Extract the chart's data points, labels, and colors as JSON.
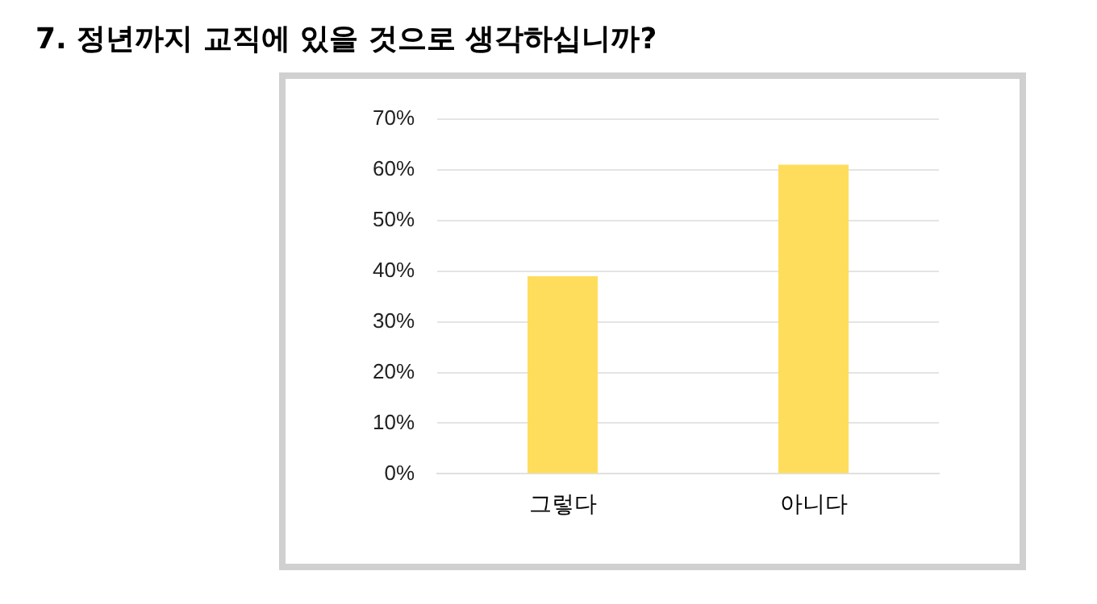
{
  "chart_data": {
    "type": "bar",
    "title": "7. 정년까지 교직에 있을 것으로 생각하십니까?",
    "categories": [
      "그렇다",
      "아니다"
    ],
    "values": [
      39,
      61
    ],
    "color": "#ffdd5c",
    "ylim": [
      0,
      70
    ],
    "yticks": [
      {
        "value": 0,
        "label": "0%"
      },
      {
        "value": 10,
        "label": "10%"
      },
      {
        "value": 20,
        "label": "20%"
      },
      {
        "value": 30,
        "label": "30%"
      },
      {
        "value": 40,
        "label": "40%"
      },
      {
        "value": 50,
        "label": "50%"
      },
      {
        "value": 60,
        "label": "60%"
      },
      {
        "value": 70,
        "label": "70%"
      }
    ],
    "grid": "y",
    "legend": false
  }
}
